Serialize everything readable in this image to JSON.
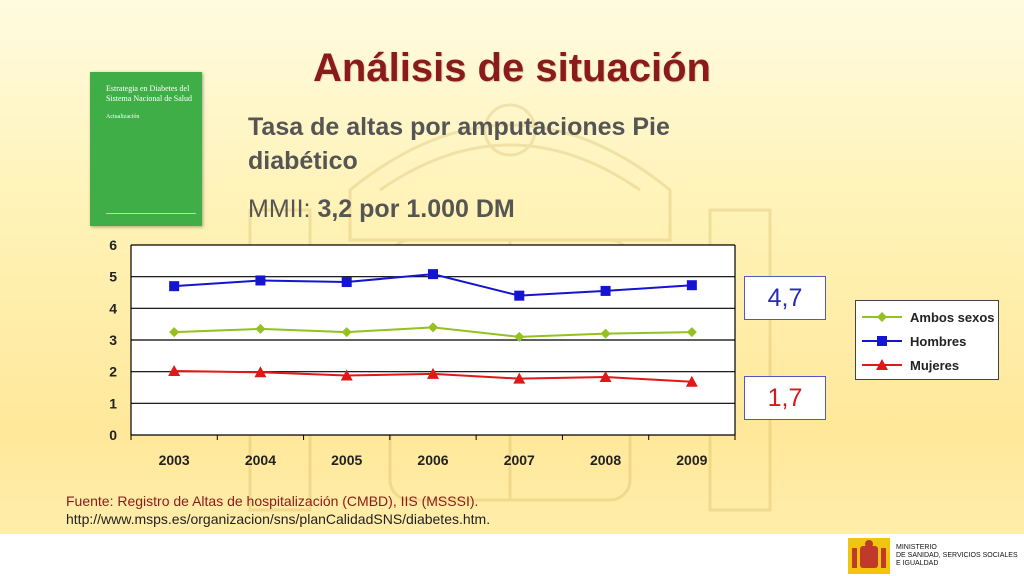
{
  "slide": {
    "title": "Análisis de situación",
    "subtitle": "Tasa de altas por amputaciones Pie diabético",
    "mmii_label": "MMII:",
    "mmii_value": "3,2 por 1.000 DM",
    "source_line1": "Fuente: Registro de Altas de hospitalización (CMBD), IIS (MSSSI).",
    "source_line2": "http://www.msps.es/organizacion/sns/planCalidadSNS/diabetes.htm."
  },
  "book": {
    "title": "Estrategia en Diabetes del Sistema Nacional de Salud",
    "subtitle": "Actualización"
  },
  "callouts": {
    "hombres": "4,7",
    "mujeres": "1,7"
  },
  "ministry": {
    "line1": "MINISTERIO",
    "line2": "DE SANIDAD, SERVICIOS SOCIALES",
    "line3": "E IGUALDAD"
  },
  "chart_data": {
    "type": "line",
    "categories": [
      "2003",
      "2004",
      "2005",
      "2006",
      "2007",
      "2008",
      "2009"
    ],
    "series": [
      {
        "name": "Ambos sexos",
        "color": "#94c11f",
        "marker": "diamond",
        "values": [
          3.25,
          3.35,
          3.25,
          3.4,
          3.1,
          3.2,
          3.25
        ]
      },
      {
        "name": "Hombres",
        "color": "#1414d2",
        "marker": "square",
        "values": [
          4.7,
          4.88,
          4.83,
          5.08,
          4.4,
          4.55,
          4.73
        ]
      },
      {
        "name": "Mujeres",
        "color": "#e01818",
        "marker": "triangle",
        "values": [
          2.02,
          1.98,
          1.88,
          1.93,
          1.78,
          1.83,
          1.68
        ]
      }
    ],
    "ylim": [
      0,
      6
    ],
    "yticks": [
      "0",
      "1",
      "2",
      "3",
      "4",
      "5",
      "6"
    ],
    "grid": true,
    "legend": "right"
  }
}
